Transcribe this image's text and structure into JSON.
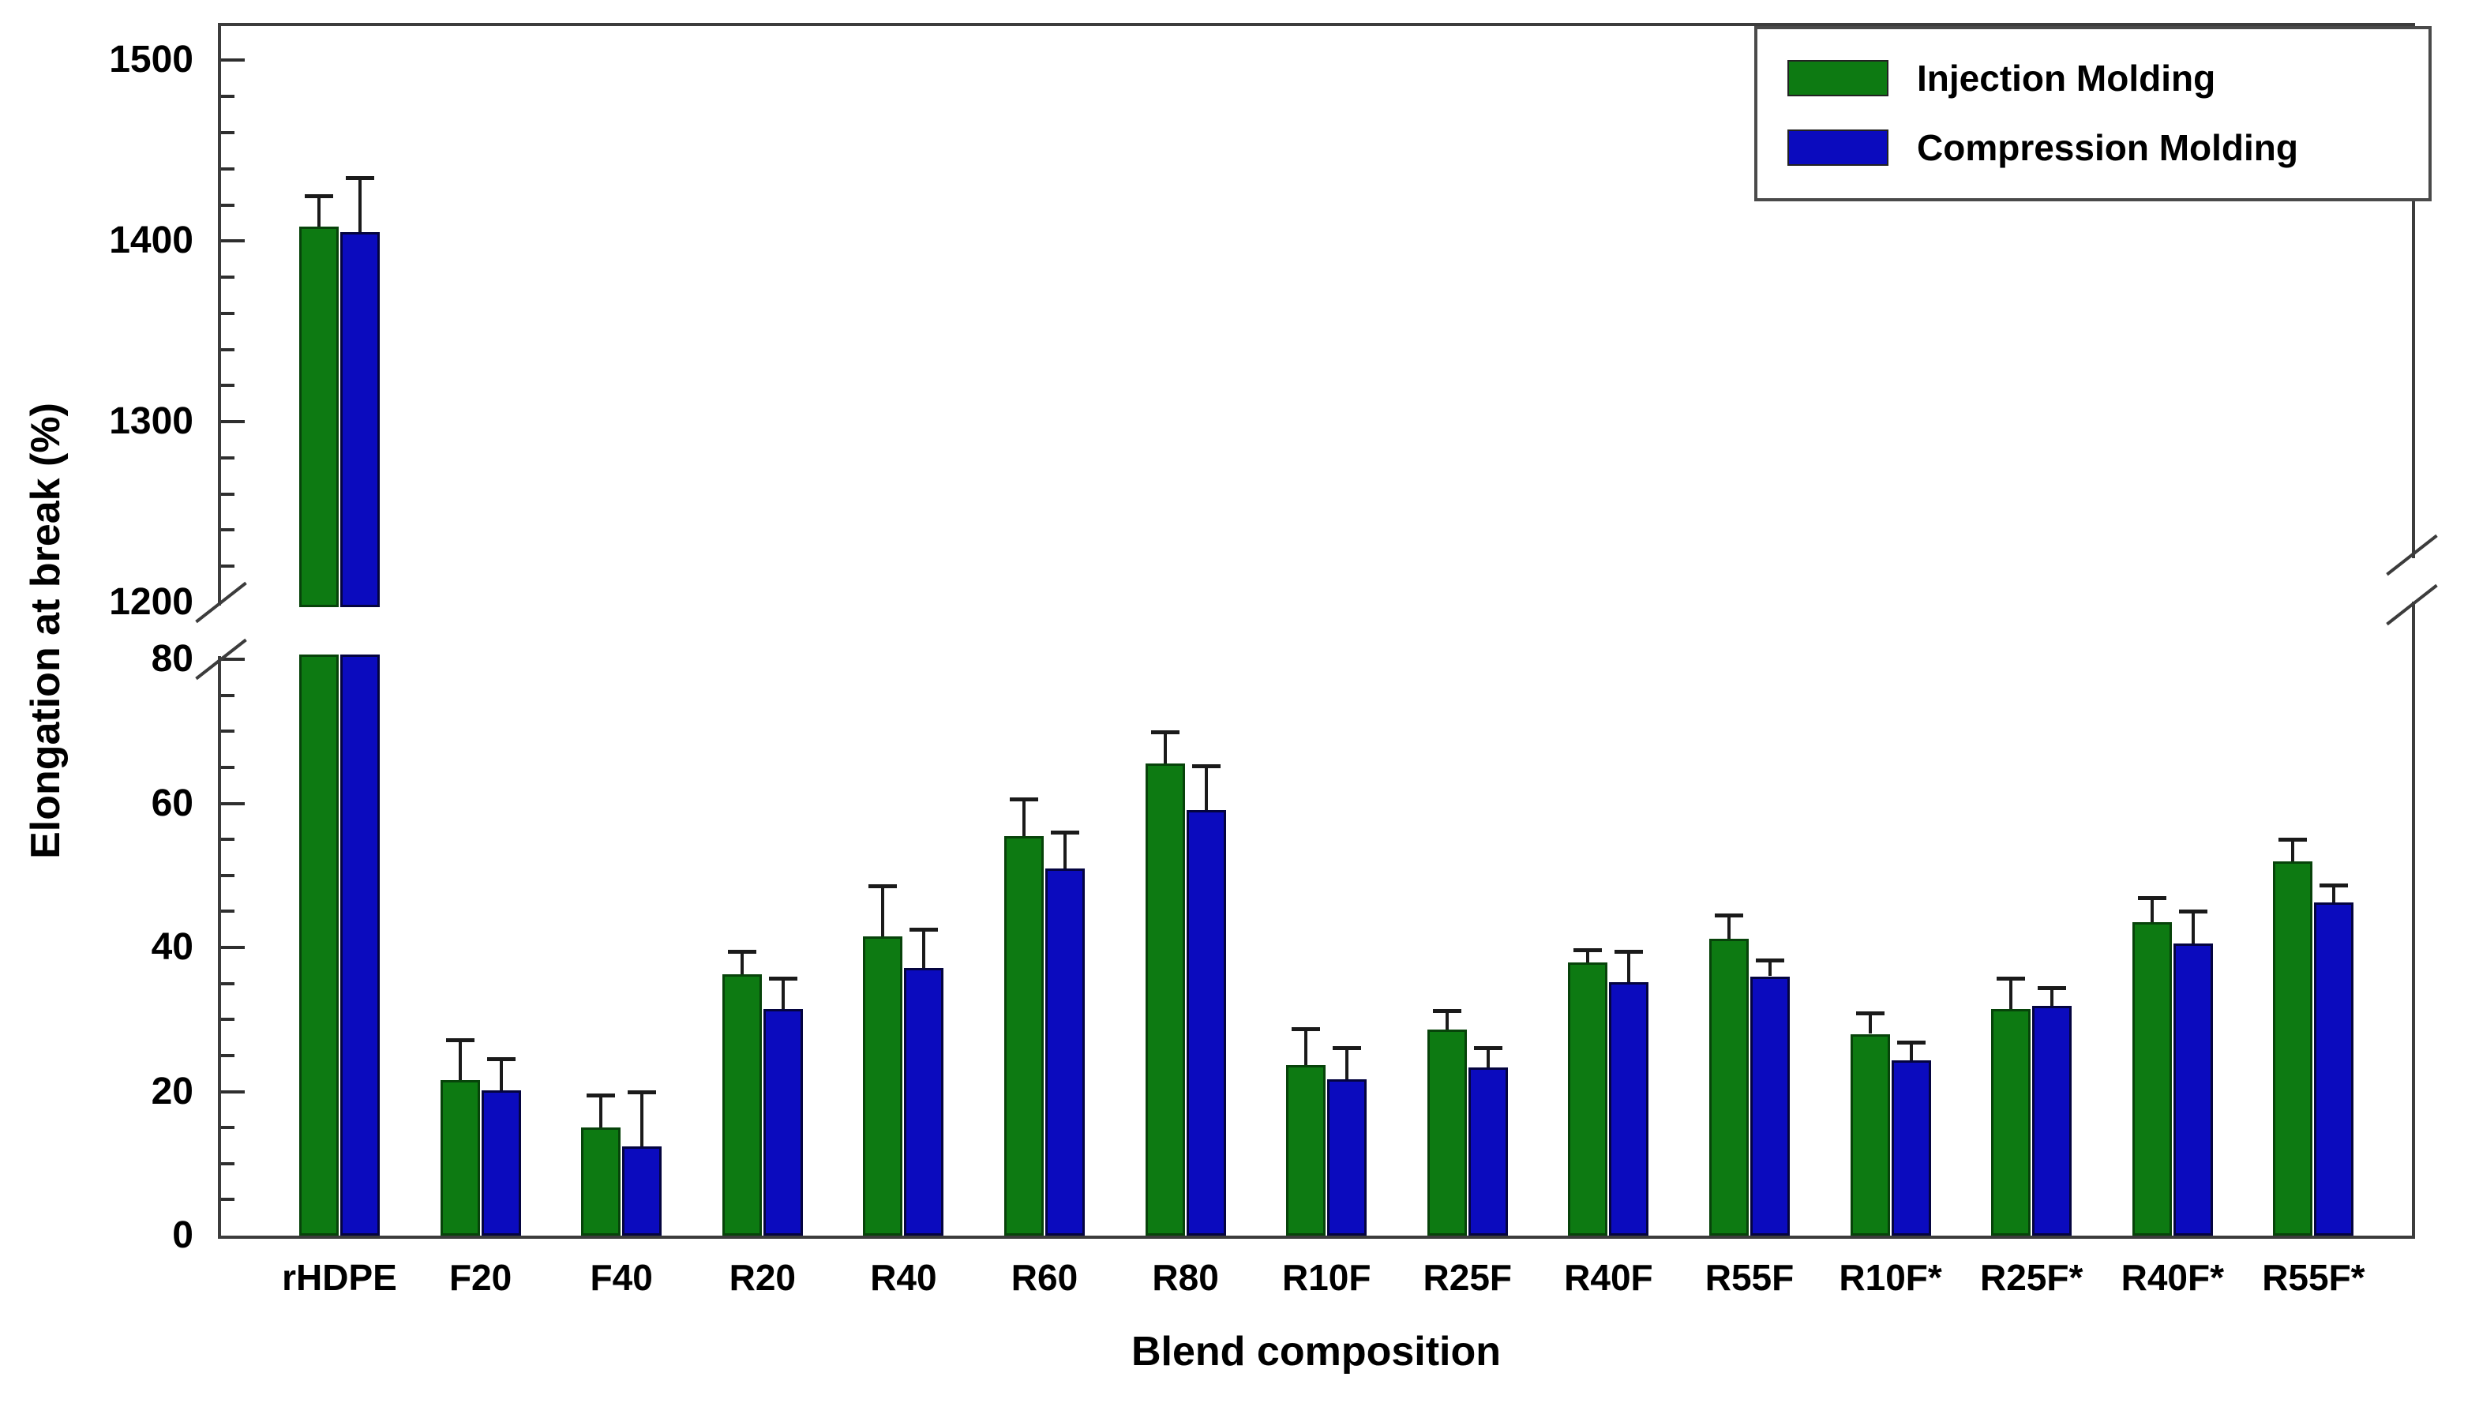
{
  "chart_data": {
    "type": "bar",
    "title": "",
    "xlabel": "Blend composition",
    "ylabel": "Elongation at break (%)",
    "categories": [
      "rHDPE",
      "F20",
      "F40",
      "R20",
      "R40",
      "R60",
      "R80",
      "R10F",
      "R25F",
      "R40F",
      "R55F",
      "R10F*",
      "R25F*",
      "R40F*",
      "R55F*"
    ],
    "series": [
      {
        "name": "Injection Molding",
        "color": "#0d7a12",
        "border_color": "#07430a",
        "values": [
          1408,
          21.6,
          15.0,
          36.3,
          41.5,
          55.4,
          65.5,
          23.7,
          28.6,
          37.9,
          41.2,
          28.0,
          31.5,
          43.5,
          52.0
        ],
        "errors_up": [
          17,
          5.6,
          4.5,
          3.2,
          7.0,
          5.2,
          4.4,
          5.0,
          2.6,
          1.8,
          3.3,
          2.9,
          4.2,
          3.4,
          3.0
        ]
      },
      {
        "name": "Compression Molding",
        "color": "#0b0bbe",
        "border_color": "#04043f",
        "values": [
          1405,
          20.2,
          12.4,
          31.5,
          37.2,
          51.0,
          59.1,
          21.7,
          23.3,
          35.2,
          36.0,
          24.3,
          31.9,
          40.5,
          46.3
        ],
        "errors_up": [
          30,
          4.3,
          7.6,
          4.2,
          5.3,
          5.0,
          6.1,
          4.4,
          2.8,
          4.3,
          2.2,
          2.6,
          2.5,
          4.5,
          2.4
        ]
      }
    ],
    "y_axis": {
      "broken": true,
      "lower_panel": {
        "min": 0,
        "max": 80,
        "major_step": 20,
        "minor_step": 5,
        "tick_labels": [
          "80",
          "60",
          "40",
          "20",
          "0"
        ]
      },
      "upper_panel": {
        "min": 1200,
        "max": 1519,
        "major_step": 100,
        "minor_step": 20,
        "tick_labels": [
          "1500",
          "1400",
          "1300",
          "1200"
        ]
      },
      "error_bar_color": "#1a1a1a"
    },
    "legend": {
      "position": "top-right",
      "entries": [
        {
          "label": "Injection Molding",
          "color": "#0d7a12"
        },
        {
          "label": "Compression Molding",
          "color": "#0b0bbe"
        }
      ]
    },
    "grid": false,
    "background": "#ffffff"
  }
}
